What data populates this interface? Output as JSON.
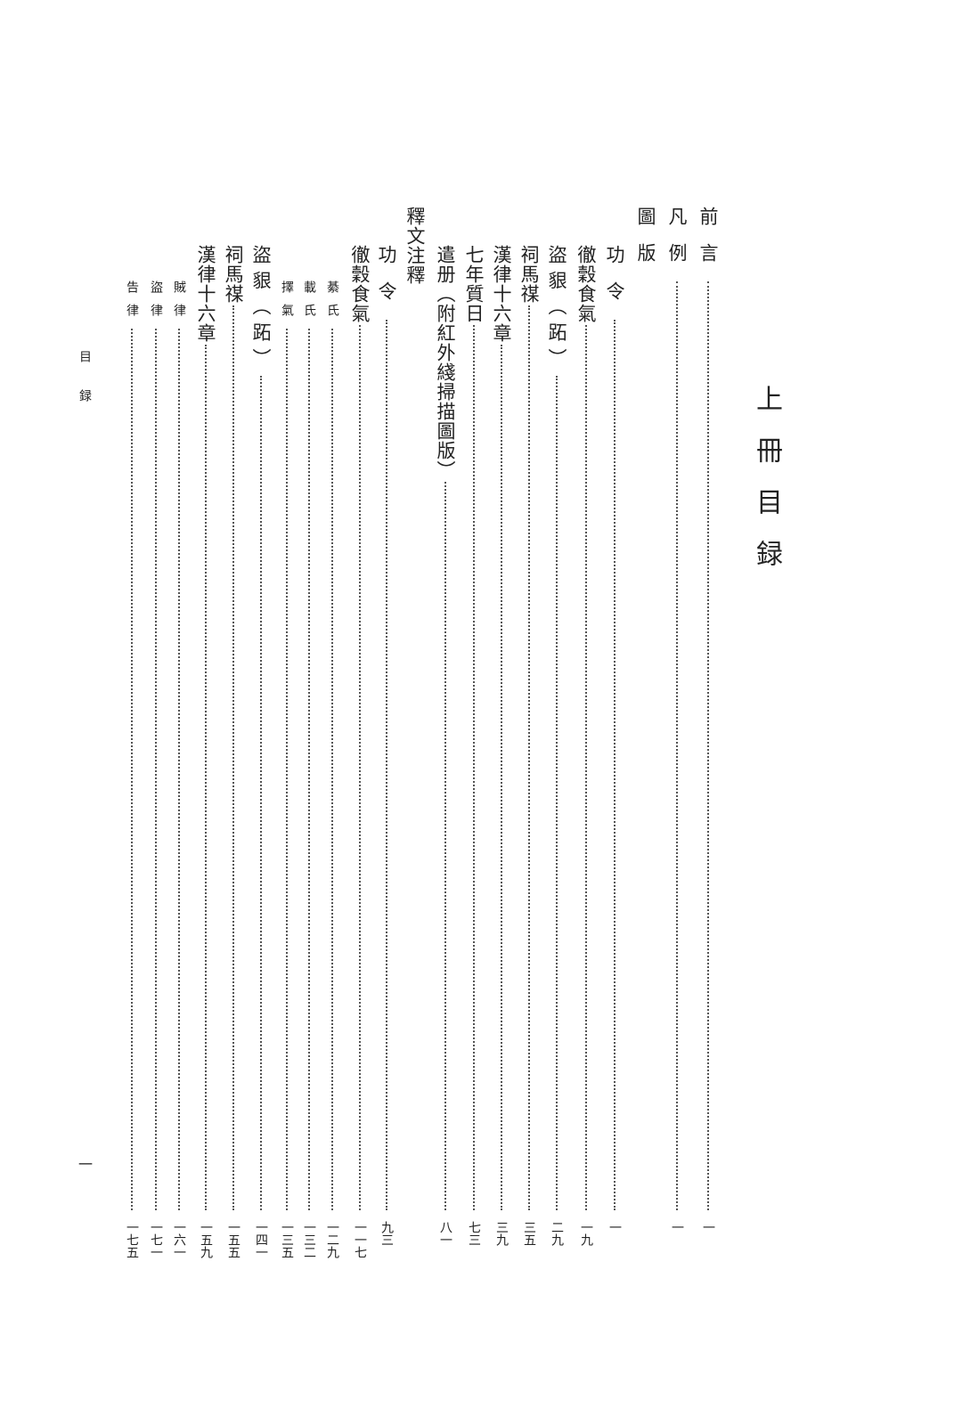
{
  "title": "上冊目録",
  "running_head": "目録",
  "folio": "一",
  "entries": [
    {
      "label": "前言",
      "page": "一"
    },
    {
      "label": "凡例",
      "page": "一"
    },
    {
      "label": "圖版",
      "page": ""
    },
    {
      "label": "功令",
      "page": "一"
    },
    {
      "label": "徹穀食氣",
      "page": "一九"
    },
    {
      "label": "盜貇（跖）",
      "page": "二九"
    },
    {
      "label": "祠馬禖",
      "page": "三五"
    },
    {
      "label": "漢律十六章",
      "page": "三九"
    },
    {
      "label": "七年質日",
      "page": "七三"
    },
    {
      "label": "遣册（附紅外綫掃描圖版）",
      "page": "八一"
    },
    {
      "label": "釋文注釋",
      "page": ""
    },
    {
      "label": "功令",
      "page": "九三"
    },
    {
      "label": "徹穀食氣",
      "page": "一一七"
    },
    {
      "label": "綦氏",
      "page": "一二九"
    },
    {
      "label": "載氏",
      "page": "一三二"
    },
    {
      "label": "擇氣",
      "page": "一三五"
    },
    {
      "label": "盜貇（跖）",
      "page": "一四一"
    },
    {
      "label": "祠馬禖",
      "page": "一五五"
    },
    {
      "label": "漢律十六章",
      "page": "一五九"
    },
    {
      "label": "賊律",
      "page": "一六一"
    },
    {
      "label": "盜律",
      "page": "一七一"
    },
    {
      "label": "告律",
      "page": "一七五"
    }
  ]
}
